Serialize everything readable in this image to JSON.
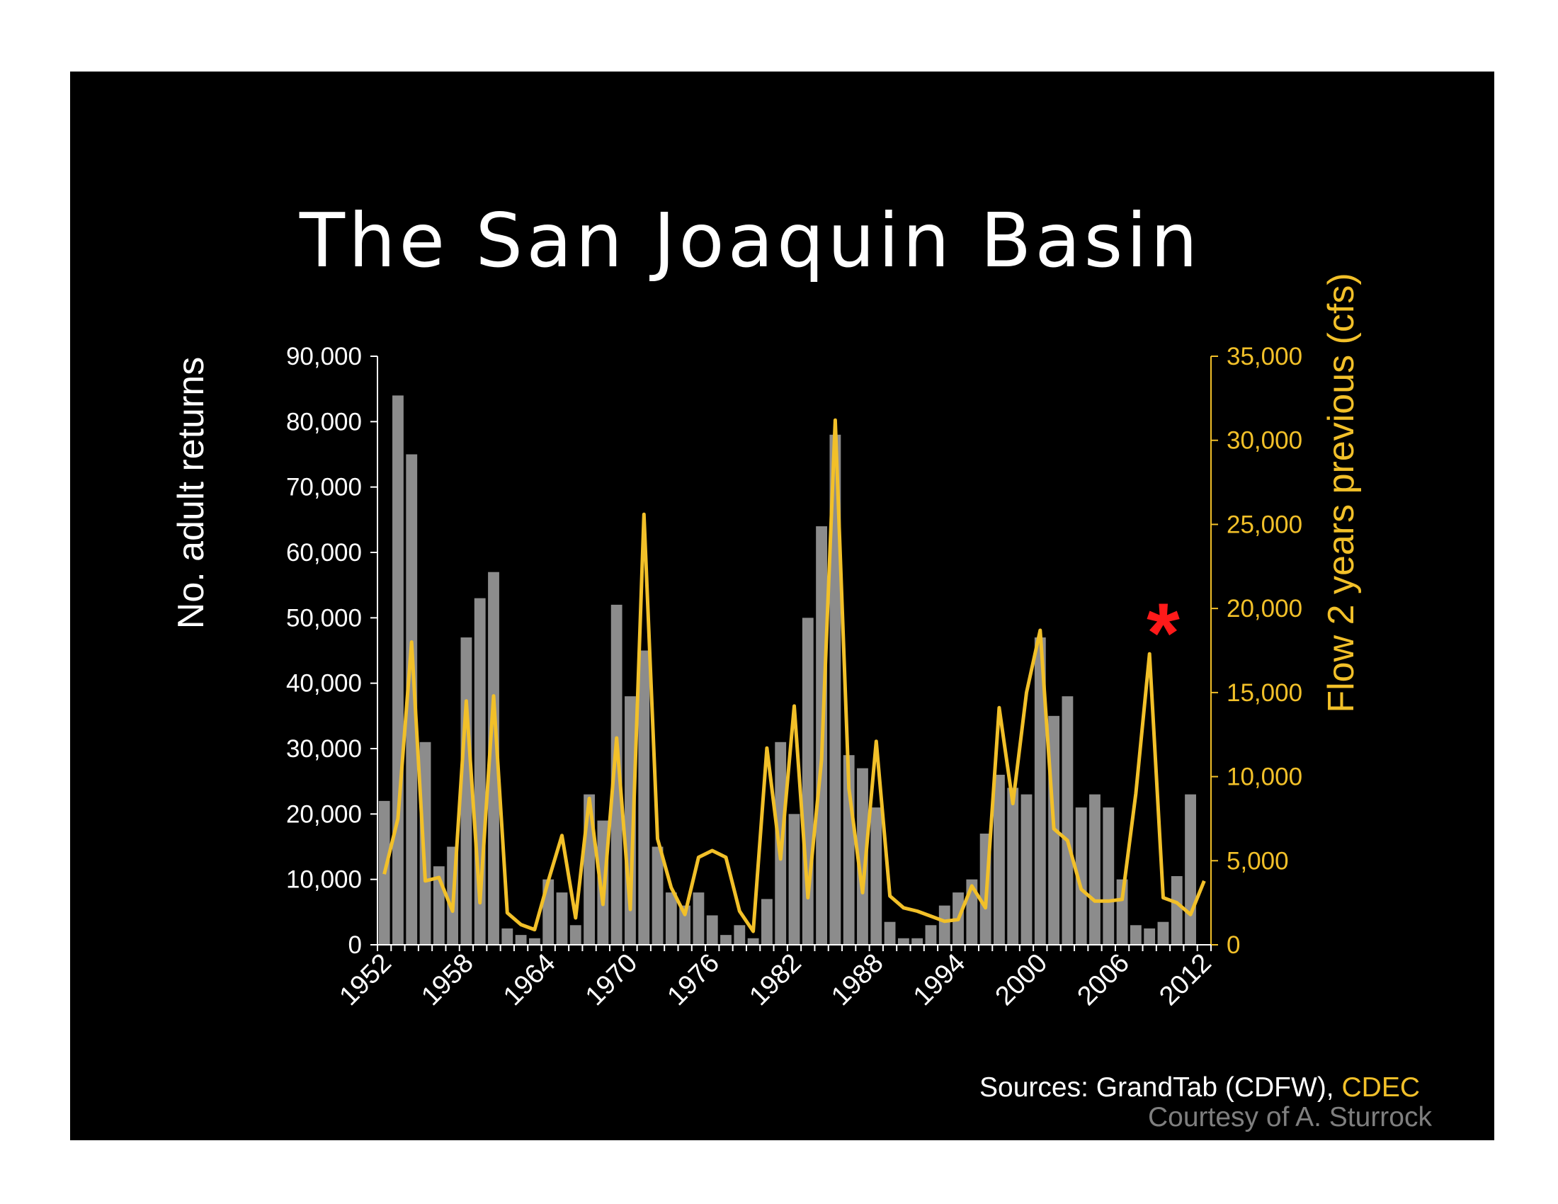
{
  "slide": {
    "title": "The San Joaquin Basin",
    "sources_prefix": "Sources: GrandTab (CDFW), ",
    "sources_highlight": "CDEC",
    "courtesy": "Courtesy of A. Sturrock",
    "annotation_symbol": "*"
  },
  "colors": {
    "background": "#000000",
    "bars": "#8c8c8c",
    "line": "#f2c029",
    "axis_left": "#ffffff",
    "axis_right": "#f2c029",
    "annotation": "#ff1a1a",
    "courtesy": "#7f7f7f"
  },
  "chart_data": {
    "type": "bar",
    "xlabel": "",
    "ylabel": "No. adult returns",
    "y2label": "Flow 2 years previous (cfs)",
    "ylim": [
      0,
      90000
    ],
    "y2lim": [
      0,
      35000
    ],
    "yticks": [
      "0",
      "10,000",
      "20,000",
      "30,000",
      "40,000",
      "50,000",
      "60,000",
      "70,000",
      "80,000",
      "90,000"
    ],
    "y2ticks": [
      "0",
      "5,000",
      "10,000",
      "15,000",
      "20,000",
      "25,000",
      "30,000",
      "35,000"
    ],
    "xtick_labels": [
      "1952",
      "1958",
      "1964",
      "1970",
      "1976",
      "1982",
      "1988",
      "1994",
      "2000",
      "2006",
      "2012"
    ],
    "categories": [
      1952,
      1953,
      1954,
      1955,
      1956,
      1957,
      1958,
      1959,
      1960,
      1961,
      1962,
      1963,
      1964,
      1965,
      1966,
      1967,
      1968,
      1969,
      1970,
      1971,
      1972,
      1973,
      1974,
      1975,
      1976,
      1977,
      1978,
      1979,
      1980,
      1981,
      1982,
      1983,
      1984,
      1985,
      1986,
      1987,
      1988,
      1989,
      1990,
      1991,
      1992,
      1993,
      1994,
      1995,
      1996,
      1997,
      1998,
      1999,
      2000,
      2001,
      2002,
      2003,
      2004,
      2005,
      2006,
      2007,
      2008,
      2009,
      2010,
      2011,
      2012
    ],
    "series": [
      {
        "name": "",
        "kind": "bar",
        "axis": "left",
        "values": [
          22000,
          84000,
          75000,
          31000,
          12000,
          15000,
          47000,
          53000,
          57000,
          2500,
          1500,
          1000,
          10000,
          8000,
          3000,
          23000,
          19000,
          52000,
          38000,
          45000,
          15000,
          8000,
          6000,
          8000,
          4500,
          1500,
          3000,
          1000,
          7000,
          31000,
          20000,
          50000,
          64000,
          78000,
          29000,
          27000,
          21000,
          3500,
          1000,
          1000,
          3000,
          6000,
          8000,
          10000,
          17000,
          26000,
          24000,
          23000,
          47000,
          35000,
          38000,
          21000,
          23000,
          21000,
          10000,
          3000,
          2500,
          3500,
          10500,
          23000,
          0
        ]
      },
      {
        "name": "",
        "kind": "line",
        "axis": "right",
        "values": [
          4200,
          7500,
          18000,
          3800,
          4000,
          2000,
          14500,
          2500,
          14800,
          1900,
          1200,
          900,
          3800,
          6500,
          1600,
          8700,
          2400,
          12300,
          2100,
          25600,
          6300,
          3400,
          1800,
          5200,
          5600,
          5200,
          2000,
          800,
          11700,
          5100,
          14200,
          2800,
          11000,
          31200,
          9300,
          3100,
          12100,
          2900,
          2200,
          2000,
          1700,
          1400,
          1500,
          3500,
          2200,
          14100,
          8400,
          15000,
          18700,
          6900,
          6200,
          3300,
          2600,
          2600,
          2700,
          9000,
          17300,
          2800,
          2500,
          1800,
          3800
        ]
      }
    ],
    "annotations": [
      {
        "symbol": "*",
        "x": 2009,
        "note_axis": "right",
        "y": 19000
      }
    ]
  }
}
